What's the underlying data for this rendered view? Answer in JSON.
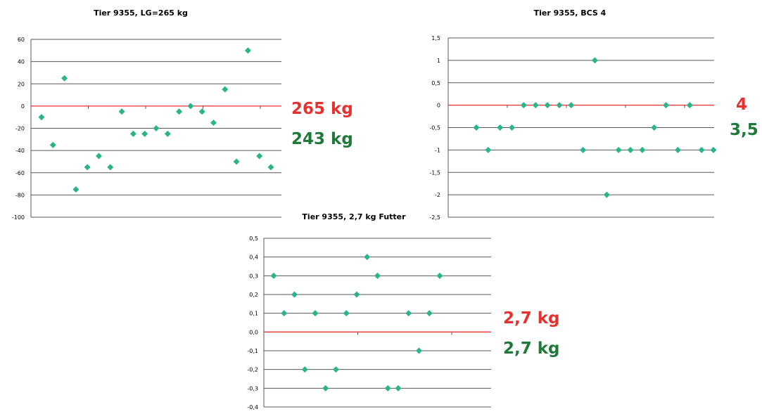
{
  "chart_data": [
    {
      "type": "scatter",
      "title": "Tier 9355, LG=265 kg",
      "ylim": [
        -100,
        60
      ],
      "yticks": [
        -100,
        -80,
        -60,
        -40,
        -20,
        0,
        20,
        40,
        60
      ],
      "ytick_labels": [
        "-100",
        "-80",
        "-60",
        "-40",
        "-20",
        "0",
        "20",
        "40",
        "60"
      ],
      "grid": true,
      "reference_line": 0,
      "values": [
        -10,
        -35,
        25,
        -75,
        -55,
        -45,
        -55,
        -5,
        -25,
        -25,
        -20,
        -25,
        -5,
        0,
        -5,
        -15,
        15,
        -50,
        50,
        -45,
        -55
      ],
      "annotations": {
        "top": "265 kg",
        "bottom": "243 kg"
      }
    },
    {
      "type": "scatter",
      "title": "Tier 9355, BCS  4",
      "ylim": [
        -2.5,
        1.5
      ],
      "yticks": [
        -2.5,
        -2,
        -1.5,
        -1,
        -0.5,
        0,
        0.5,
        1,
        1.5
      ],
      "ytick_labels": [
        "-2,5",
        "-2",
        "-1,5",
        "-1",
        "-0,5",
        "0",
        "0,5",
        "1",
        "1,5"
      ],
      "grid": true,
      "reference_line": 0,
      "values": [
        -0.5,
        -1,
        -0.5,
        -0.5,
        0,
        0,
        0,
        0,
        0,
        -1,
        1,
        -2,
        -1,
        -1,
        -1,
        -0.5,
        0,
        -1,
        0,
        -1,
        -1
      ],
      "annotations": {
        "top": "4",
        "bottom": "3,5"
      }
    },
    {
      "type": "scatter",
      "title": "Tier 9355, 2,7 kg Futter",
      "ylim": [
        -0.4,
        0.5
      ],
      "yticks": [
        -0.4,
        -0.3,
        -0.2,
        -0.1,
        0.0,
        0.1,
        0.2,
        0.3,
        0.4,
        0.5
      ],
      "ytick_labels": [
        "-0,4",
        "-0,3",
        "-0,2",
        "-0,1",
        "0,0",
        "0,1",
        "0,2",
        "0,3",
        "0,4",
        "0,5"
      ],
      "grid": true,
      "reference_line": 0,
      "values": [
        0.3,
        0.1,
        0.2,
        -0.2,
        0.1,
        -0.3,
        -0.2,
        0.1,
        0.2,
        0.4,
        0.3,
        -0.3,
        -0.3,
        0.1,
        -0.1,
        0.1,
        0.3
      ],
      "annotations": {
        "top": "2,7 kg",
        "bottom": "2,7 kg"
      }
    }
  ],
  "colors": {
    "marker": "#2bb38a",
    "zero_line": "#e8312f",
    "annotation_top": "#e8312f",
    "annotation_bottom": "#1f7a3a",
    "grid": "#595959",
    "text": "#000000"
  }
}
